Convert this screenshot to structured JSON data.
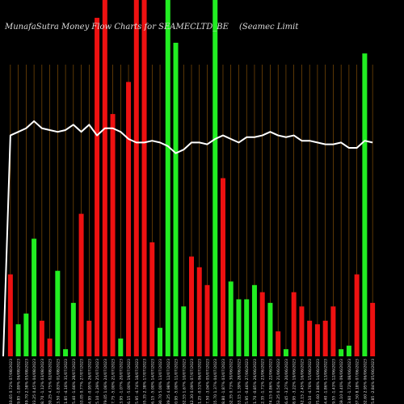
{
  "header": {
    "title_left": "MunafaSutra Money Flow  Charts for SEAMECLTD_BE",
    "title_right": "(Seamec Limit"
  },
  "colors": {
    "background": "#000000",
    "grid": "#c8780a",
    "inflow": "#22ee22",
    "outflow": "#ee1111",
    "line": "#ffffff",
    "label": "#dddddd"
  },
  "chart_data": {
    "type": "bar",
    "title": "MunafaSutra Money Flow  Charts for SEAMECLTD_BE",
    "ylim": [
      0,
      100
    ],
    "grid": "vertical",
    "categories": [
      "1040.65 0.72% 07/08/2023",
      "1029.85 -1.89% 06/08/2023",
      "1049.70 2.58% 05/08/2023",
      "1023.25 0.45% 04/08/2023",
      "1018.70 -1.12% 03/08/2023",
      "1030.25 4.75% 02/08/2023",
      "983.50 -1.83% 01/08/2023",
      "1001.85 -4.16% 31/07/2023",
      "1045.40 -1.66% 28/07/2023",
      "1063.05 0.77% 27/07/2023",
      "1054.95 -0.95% 26/07/2023",
      "1065.10 -1.29% 25/07/2023",
      "1079.05 1.06% 24/07/2023",
      "1067.75 -5.00% 21/07/2023",
      "1123.95 -1.07% 20/07/2023",
      "1136.15 -5.00% 19/07/2023",
      "1195.95 -4.74% 18/07/2023",
      "1255.35 2.38% 17/07/2023",
      "1226.15 -5.00% 14/07/2023",
      "1290.70 5.00% 13/07/2023",
      "1229.25 4.98% 12/07/2023",
      "1170.95 -5.00% 11/07/2023",
      "1232.55 1.67% 10/07/2023",
      "1212.30 0.09% 07/07/2023",
      "1211.25 -0.51% 06/07/2023",
      "1217.50 -3.04% 05/07/2023",
      "1255.70 1.37% 04/07/2023",
      "1238.80 -1.87% 03/07/2023",
      "1262.35 0.73% 30/06/2023",
      "1253.15 1.39% 28/06/2023",
      "1235.95 -0.46% 27/06/2023",
      "1241.70 -0.85% 26/06/2023",
      "1252.35 -1.71% 23/06/2023",
      "1274.15 0.86% 22/06/2023",
      "1263.25 0.54% 21/06/2023",
      "1256.45 -3.27% 20/06/2023",
      "1298.95 -3.22% 19/06/2023",
      "1342.15 2.45% 16/06/2023",
      "1310.10 -4.76% 15/06/2023",
      "1375.60 3.86% 14/06/2023",
      "1324.40 -1.86% 13/06/2023",
      "1349.55 -1.43% 12/06/2023",
      "1369.10 0.40% 09/06/2023",
      "1363.60 -1.72% 08/06/2023",
      "1387.50 8.18% 07/06/2023",
      "1282.60 2.95% 06/06/2023",
      "1245.85 -2.84% 05/06/2023"
    ],
    "series": [
      {
        "values": [
          23,
          9,
          12,
          33,
          10,
          5,
          24,
          2,
          15,
          40,
          10,
          95,
          100,
          68,
          5,
          77,
          100,
          100,
          32,
          8,
          100,
          88,
          14,
          28,
          25,
          20,
          100,
          50,
          21,
          16,
          16,
          20,
          18,
          15,
          7,
          2,
          18,
          14,
          10,
          9,
          10,
          14,
          2,
          3,
          23,
          85,
          15
        ],
        "directions": [
          "out",
          "in",
          "in",
          "in",
          "out",
          "out",
          "in",
          "in",
          "in",
          "out",
          "out",
          "out",
          "out",
          "out",
          "in",
          "out",
          "out",
          "out",
          "out",
          "in",
          "in",
          "in",
          "in",
          "out",
          "out",
          "out",
          "in",
          "out",
          "in",
          "in",
          "in",
          "in",
          "out",
          "in",
          "out",
          "in",
          "out",
          "out",
          "out",
          "out",
          "out",
          "out",
          "in",
          "in",
          "out",
          "in",
          "out"
        ]
      }
    ],
    "line_values": [
      62,
      63,
      64,
      66,
      64,
      63.5,
      63,
      63.5,
      65,
      63,
      65,
      62,
      64,
      64,
      63,
      61,
      60,
      60,
      60.5,
      60,
      59,
      57,
      58,
      60,
      60,
      59.5,
      61,
      62,
      61,
      60,
      61.5,
      61.5,
      62,
      63,
      62,
      61.5,
      62,
      60.5,
      60.5,
      60,
      59.5,
      59.5,
      60,
      58.5,
      58.5,
      60.5,
      60
    ]
  }
}
